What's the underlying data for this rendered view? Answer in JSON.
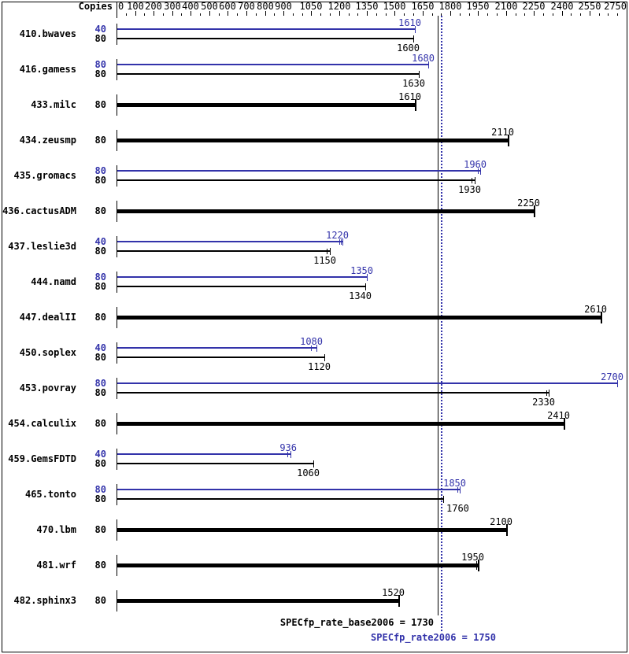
{
  "chart_data": {
    "type": "bar",
    "orientation": "horizontal",
    "copies_header": "Copies",
    "colors": {
      "peak": "#3333aa",
      "base": "#000000",
      "background": "#ffffff"
    },
    "axis": {
      "min": 0,
      "max": 2750,
      "major_tick_labels": [
        0,
        100,
        200,
        300,
        400,
        500,
        600,
        700,
        800,
        900,
        1050,
        1200,
        1350,
        1500,
        1650,
        1800,
        1950,
        2100,
        2250,
        2400,
        2550,
        2750
      ],
      "minor_tick_step": 50,
      "position": "top"
    },
    "reference_lines": [
      {
        "name": "base",
        "label": "SPECfp_rate_base2006 = 1730",
        "value": 1730,
        "style": "solid",
        "color": "#000000"
      },
      {
        "name": "peak",
        "label": "SPECfp_rate2006 = 1750",
        "value": 1750,
        "style": "dotted",
        "color": "#3333aa"
      }
    ],
    "benchmarks": [
      {
        "name": "410.bwaves",
        "bars": [
          {
            "copies": "40",
            "type": "peak",
            "value": 1610,
            "label": "1610"
          },
          {
            "copies": "80",
            "type": "base",
            "value": 1600,
            "label": "1600"
          }
        ]
      },
      {
        "name": "416.gamess",
        "bars": [
          {
            "copies": "80",
            "type": "peak",
            "value": 1680,
            "label": "1680"
          },
          {
            "copies": "80",
            "type": "base",
            "value": 1630,
            "label": "1630"
          }
        ]
      },
      {
        "name": "433.milc",
        "bars": [
          {
            "copies": "80",
            "type": "base",
            "value": 1610,
            "label": "1610"
          }
        ]
      },
      {
        "name": "434.zeusmp",
        "bars": [
          {
            "copies": "80",
            "type": "base",
            "value": 2110,
            "label": "2110"
          }
        ]
      },
      {
        "name": "435.gromacs",
        "bars": [
          {
            "copies": "80",
            "type": "peak",
            "value": 1960,
            "label": "1960",
            "run_ticks": [
              1948
            ]
          },
          {
            "copies": "80",
            "type": "base",
            "value": 1930,
            "label": "1930",
            "run_ticks": [
              1916
            ]
          }
        ]
      },
      {
        "name": "436.cactusADM",
        "bars": [
          {
            "copies": "80",
            "type": "base",
            "value": 2250,
            "label": "2250"
          }
        ]
      },
      {
        "name": "437.leslie3d",
        "bars": [
          {
            "copies": "40",
            "type": "peak",
            "value": 1220,
            "label": "1220",
            "run_ticks": [
              1200,
              1210
            ]
          },
          {
            "copies": "80",
            "type": "base",
            "value": 1150,
            "label": "1150",
            "run_ticks": [
              1132
            ]
          }
        ]
      },
      {
        "name": "444.namd",
        "bars": [
          {
            "copies": "80",
            "type": "peak",
            "value": 1350,
            "label": "1350"
          },
          {
            "copies": "80",
            "type": "base",
            "value": 1340,
            "label": "1340"
          }
        ]
      },
      {
        "name": "447.dealII",
        "bars": [
          {
            "copies": "80",
            "type": "base",
            "value": 2610,
            "label": "2610"
          }
        ]
      },
      {
        "name": "450.soplex",
        "bars": [
          {
            "copies": "40",
            "type": "peak",
            "value": 1080,
            "label": "1080",
            "run_ticks": [
              1048
            ]
          },
          {
            "copies": "80",
            "type": "base",
            "value": 1120,
            "label": "1120"
          }
        ]
      },
      {
        "name": "453.povray",
        "bars": [
          {
            "copies": "80",
            "type": "peak",
            "value": 2700,
            "label": "2700"
          },
          {
            "copies": "80",
            "type": "base",
            "value": 2330,
            "label": "2330",
            "run_ticks": [
              2316
            ]
          }
        ]
      },
      {
        "name": "454.calculix",
        "bars": [
          {
            "copies": "80",
            "type": "base",
            "value": 2410,
            "label": "2410"
          }
        ]
      },
      {
        "name": "459.GemsFDTD",
        "bars": [
          {
            "copies": "40",
            "type": "peak",
            "value": 936,
            "label": "936",
            "run_ticks": [
              922
            ]
          },
          {
            "copies": "80",
            "type": "base",
            "value": 1060,
            "label": "1060"
          }
        ]
      },
      {
        "name": "465.tonto",
        "bars": [
          {
            "copies": "80",
            "type": "peak",
            "value": 1850,
            "label": "1850",
            "run_ticks": [
              1838
            ]
          },
          {
            "copies": "80",
            "type": "base",
            "value": 1760,
            "label": "1760",
            "label_side": "right"
          }
        ]
      },
      {
        "name": "470.lbm",
        "bars": [
          {
            "copies": "80",
            "type": "base",
            "value": 2100,
            "label": "2100"
          }
        ]
      },
      {
        "name": "481.wrf",
        "bars": [
          {
            "copies": "80",
            "type": "base",
            "value": 1950,
            "label": "1950",
            "run_ticks": [
              1938
            ]
          }
        ]
      },
      {
        "name": "482.sphinx3",
        "bars": [
          {
            "copies": "80",
            "type": "base",
            "value": 1520,
            "label": "1520"
          }
        ]
      }
    ]
  }
}
